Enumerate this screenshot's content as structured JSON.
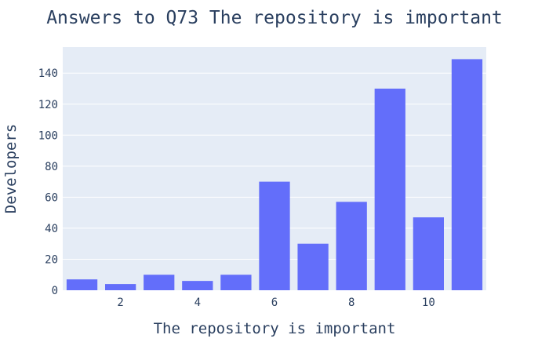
{
  "chart_data": {
    "type": "bar",
    "title": "Answers to Q73 The repository is important",
    "xlabel": "The repository is important",
    "ylabel": "Developers",
    "x": [
      1,
      2,
      3,
      4,
      5,
      6,
      7,
      8,
      9,
      10,
      11
    ],
    "values": [
      7,
      4,
      10,
      6,
      10,
      70,
      30,
      57,
      130,
      47,
      149
    ],
    "xticks": [
      2,
      4,
      6,
      8,
      10
    ],
    "yticks": [
      0,
      20,
      40,
      60,
      80,
      100,
      120,
      140
    ],
    "xlim": [
      0.5,
      11.5
    ],
    "ylim": [
      0,
      156.8
    ],
    "grid": true,
    "legend": "none",
    "colors": {
      "bar": "#636efa",
      "plot_bg": "#e5ecf6",
      "grid": "#ffffff",
      "text": "#2a3f5f"
    }
  }
}
